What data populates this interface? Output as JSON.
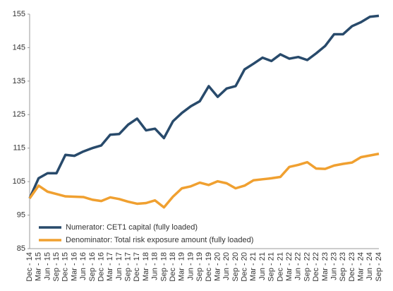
{
  "chart_data": {
    "type": "line",
    "categories": [
      "Dec - 14",
      "Mar - 15",
      "Jun - 15",
      "Sep - 15",
      "Dec - 15",
      "Mar - 16",
      "Jun - 16",
      "Sep - 16",
      "Dec - 16",
      "Mar - 17",
      "Jun - 17",
      "Sep - 17",
      "Dec - 17",
      "Mar - 18",
      "Jun - 18",
      "Sep - 18",
      "Dec - 18",
      "Mar - 19",
      "Jun - 19",
      "Sep - 19",
      "Dec - 19",
      "Mar - 20",
      "Jun - 20",
      "Sep - 20",
      "Dec - 20",
      "Mar - 21",
      "Jun - 21",
      "Sep - 21",
      "Dec - 21",
      "Mar - 22",
      "Jun - 22",
      "Sep - 22",
      "Dec - 22",
      "Mar - 23",
      "Jun - 23",
      "Sep - 23",
      "Dec - 23",
      "Mar - 24",
      "Jun - 24",
      "Sep - 24"
    ],
    "series": [
      {
        "name": "Numerator: CET1 capital (fully loaded)",
        "color": "#284a6b",
        "values": [
          100,
          106,
          107.5,
          107.5,
          113,
          112.7,
          114,
          115,
          115.8,
          119,
          119.2,
          122,
          123.8,
          120.3,
          120.8,
          118,
          123,
          125.5,
          127.5,
          129,
          133.5,
          130.3,
          132.8,
          133.5,
          138.5,
          140.2,
          142,
          141,
          143,
          141.7,
          142.2,
          141.3,
          143.3,
          145.5,
          149,
          149,
          151.4,
          152.6,
          154.2,
          154.5
        ]
      },
      {
        "name": "Denominator: Total risk exposure amount (fully loaded)",
        "color": "#f0a030",
        "values": [
          100,
          103.8,
          102,
          101.3,
          100.6,
          100.5,
          100.4,
          99.6,
          99.2,
          100.3,
          99.8,
          99,
          98.4,
          98.6,
          99.4,
          97.3,
          100.5,
          103,
          103.6,
          104.7,
          104,
          105.1,
          104.5,
          103,
          103.8,
          105.4,
          105.7,
          106,
          106.4,
          109.4,
          110,
          110.8,
          108.9,
          108.8,
          109.8,
          110.3,
          110.7,
          112.3,
          112.8,
          113.3
        ]
      }
    ],
    "ylim": [
      85,
      155
    ],
    "yticks": [
      85,
      95,
      105,
      115,
      125,
      135,
      145,
      155
    ],
    "grid": false,
    "legend": "lower left"
  }
}
